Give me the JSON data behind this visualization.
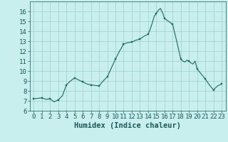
{
  "x": [
    0,
    0.5,
    1,
    1.5,
    2,
    2.5,
    3,
    3.5,
    4,
    4.5,
    5,
    5.5,
    6,
    6.5,
    7,
    7.5,
    8,
    8.5,
    9,
    9.5,
    10,
    10.5,
    11,
    11.5,
    12,
    12.5,
    13,
    13.5,
    14,
    14.25,
    14.5,
    14.75,
    15,
    15.25,
    15.5,
    15.75,
    16,
    16.5,
    17,
    17.5,
    18,
    18.25,
    18.5,
    18.75,
    19,
    19.25,
    19.5,
    19.75,
    20,
    20.5,
    21,
    21.5,
    22,
    22.5,
    23
  ],
  "y": [
    7.2,
    7.25,
    7.3,
    7.15,
    7.2,
    6.9,
    7.1,
    7.5,
    8.6,
    9.0,
    9.3,
    9.1,
    8.9,
    8.7,
    8.6,
    8.55,
    8.5,
    9.0,
    9.4,
    10.3,
    11.2,
    12.0,
    12.7,
    12.85,
    12.9,
    13.1,
    13.2,
    13.5,
    13.7,
    14.2,
    14.8,
    15.5,
    15.8,
    16.1,
    16.3,
    15.9,
    15.3,
    15.0,
    14.7,
    13.0,
    11.2,
    11.0,
    10.9,
    11.1,
    11.0,
    10.8,
    10.7,
    11.0,
    10.2,
    9.7,
    9.2,
    8.6,
    8.1,
    8.5,
    8.7
  ],
  "line_color": "#1a6b5a",
  "marker_color": "#1a6b5a",
  "bg_color": "#c8eeee",
  "grid_color": "#9ecece",
  "xlabel": "Humidex (Indice chaleur)",
  "xlim": [
    -0.5,
    23.5
  ],
  "ylim": [
    6,
    17
  ],
  "yticks": [
    6,
    7,
    8,
    9,
    10,
    11,
    12,
    13,
    14,
    15,
    16
  ],
  "xticks": [
    0,
    1,
    2,
    3,
    4,
    5,
    6,
    7,
    8,
    9,
    10,
    11,
    12,
    13,
    14,
    15,
    16,
    17,
    18,
    19,
    20,
    21,
    22,
    23
  ],
  "marker_x": [
    0,
    1,
    2,
    3,
    4,
    5,
    6,
    7,
    8,
    9,
    10,
    11,
    12,
    13,
    14,
    15,
    16,
    17,
    18,
    19,
    20,
    21,
    22,
    23
  ],
  "marker_y": [
    7.2,
    7.3,
    7.2,
    7.1,
    8.6,
    9.3,
    8.9,
    8.6,
    8.5,
    9.4,
    11.2,
    12.7,
    12.9,
    13.2,
    13.7,
    15.8,
    15.3,
    14.7,
    11.2,
    11.0,
    10.2,
    9.2,
    8.1,
    8.7
  ],
  "tick_fontsize": 6.5,
  "xlabel_fontsize": 7.5
}
